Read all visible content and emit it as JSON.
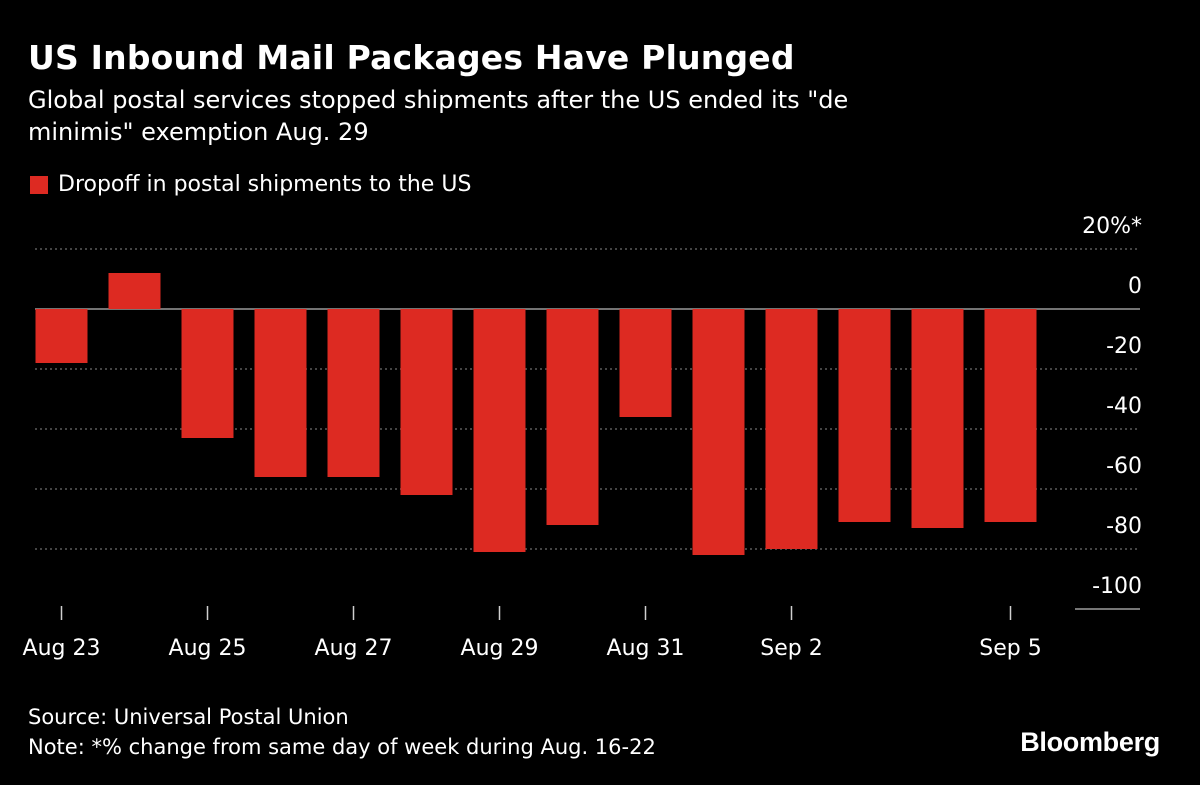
{
  "colors": {
    "background": "#000000",
    "bar": "#dd2a22",
    "text": "#ffffff",
    "grid": "#8a8a8a"
  },
  "header": {
    "title": "US Inbound Mail Packages Have Plunged",
    "subtitle": "Global postal services stopped shipments after the US ended its \"de minimis\" exemption Aug. 29"
  },
  "legend": {
    "label": "Dropoff in postal shipments to the US"
  },
  "footer": {
    "source": "Source: Universal Postal Union",
    "note": "Note: *% change from same day of week during Aug. 16-22"
  },
  "brand": {
    "logo": "Bloomberg"
  },
  "chart_data": {
    "type": "bar",
    "title": "US Inbound Mail Packages Have Plunged",
    "categories": [
      "Aug 23",
      "Aug 24",
      "Aug 25",
      "Aug 26",
      "Aug 27",
      "Aug 28",
      "Aug 29",
      "Aug 30",
      "Aug 31",
      "Sep 1",
      "Sep 2",
      "Sep 3",
      "Sep 4",
      "Sep 5"
    ],
    "series": [
      {
        "name": "Dropoff in postal shipments to the US",
        "values": [
          -18,
          12,
          -43,
          -56,
          -56,
          -62,
          -81,
          -72,
          -36,
          -82,
          -80,
          -71,
          -73,
          -71
        ]
      }
    ],
    "x_tick_labels": [
      {
        "label": "Aug 23",
        "index": 0
      },
      {
        "label": "Aug 25",
        "index": 2
      },
      {
        "label": "Aug 27",
        "index": 4
      },
      {
        "label": "Aug 29",
        "index": 6
      },
      {
        "label": "Aug 31",
        "index": 8
      },
      {
        "label": "Sep 2",
        "index": 10
      },
      {
        "label": "Sep 5",
        "index": 13
      }
    ],
    "y_ticks": [
      {
        "value": 20,
        "label": "20%*"
      },
      {
        "value": 0,
        "label": "0"
      },
      {
        "value": -20,
        "label": "-20"
      },
      {
        "value": -40,
        "label": "-40"
      },
      {
        "value": -60,
        "label": "-60"
      },
      {
        "value": -80,
        "label": "-80"
      },
      {
        "value": -100,
        "label": "-100"
      }
    ],
    "ylim": [
      -100,
      20
    ],
    "grid": true,
    "xlabel": "",
    "ylabel": ""
  }
}
